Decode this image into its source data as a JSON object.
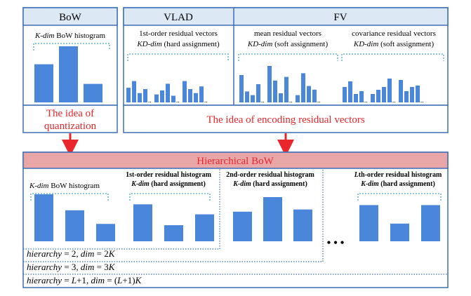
{
  "colors": {
    "box_border": "#3b6fb6",
    "header_fill": "#dde8f5",
    "bar_fill": "#4a86d9",
    "accent_red": "#e8262b",
    "hier_header_fill": "#e9a6a6",
    "dotted": "#4aa3c9"
  },
  "bow": {
    "title": "BoW",
    "caption": {
      "pre": "K-dim",
      "post": " BoW histogram"
    },
    "bars": [
      0.68,
      1.0,
      0.33
    ]
  },
  "vlad": {
    "title": "VLAD",
    "caption1": "1st-order residual vectors",
    "caption2": {
      "pre": "KD-dim",
      "post": " (hard assignment)"
    },
    "bars": [
      [
        0.55,
        0.8,
        0.35,
        0.5
      ],
      [
        0.3,
        0.45,
        0.7,
        0.25
      ],
      [
        0.8,
        0.5,
        0.35,
        0.6
      ]
    ]
  },
  "fv": {
    "title": "FV",
    "mean_caption1": "mean residual vectors",
    "mean_caption2": {
      "pre": "KD-dim",
      "post": " (soft assignment)"
    },
    "cov_caption1": "covariance residual vectors",
    "cov_caption2": {
      "pre": "KD-dim",
      "post": " (soft assignment)"
    },
    "mean_bars": [
      [
        0.75,
        0.3,
        0.2,
        0.5
      ],
      [
        1.0,
        0.6,
        0.25,
        0.7
      ],
      [
        0.2,
        0.8,
        0.45,
        0.35
      ]
    ],
    "cov_bars": [
      [
        0.55,
        0.75,
        0.3,
        0.4
      ],
      [
        0.3,
        0.45,
        0.55,
        0.85
      ],
      [
        0.8,
        0.4,
        0.55,
        0.6
      ]
    ]
  },
  "idea_quantization": [
    "The idea of",
    "quantization"
  ],
  "idea_residual": "The idea of encoding residual vectors",
  "hier": {
    "title": "Hierarchical BoW",
    "bow_caption": {
      "pre": "K-dim",
      "post": " BoW histogram"
    },
    "bow_bars": [
      1.0,
      0.66,
      0.37
    ],
    "first_caption1": "1st-order residual histogram",
    "first_caption2": {
      "pre": "K-dim",
      "post": " (hard assignment)"
    },
    "first_bars": [
      0.85,
      0.37,
      0.62
    ],
    "second_caption1": "2nd-order residual histogram",
    "second_caption2": {
      "pre": "K-dim",
      "post": " (hard assignment)"
    },
    "second_bars": [
      0.67,
      1.0,
      0.72
    ],
    "lth_caption1": {
      "pre": "L",
      "post": "th-order residual histogram"
    },
    "lth_caption2": {
      "pre": "K-dim",
      "post": " (hard assignment)"
    },
    "lth_bars": [
      0.86,
      0.42,
      0.86
    ],
    "ellipsis": "• • •",
    "rows": [
      {
        "a": "hierarchy",
        "b": " = 2, ",
        "c": "dim",
        "d": " = 2",
        "e": "K"
      },
      {
        "a": "hierarchy",
        "b": " = 3, ",
        "c": "dim",
        "d": " = 3",
        "e": "K"
      },
      {
        "a": "hierarchy",
        "b": " = ",
        "c": "L",
        "d": "+1, ",
        "e": "dim",
        "f": " = (",
        "g": "L",
        "h": "+1)",
        "i": "K"
      }
    ]
  }
}
